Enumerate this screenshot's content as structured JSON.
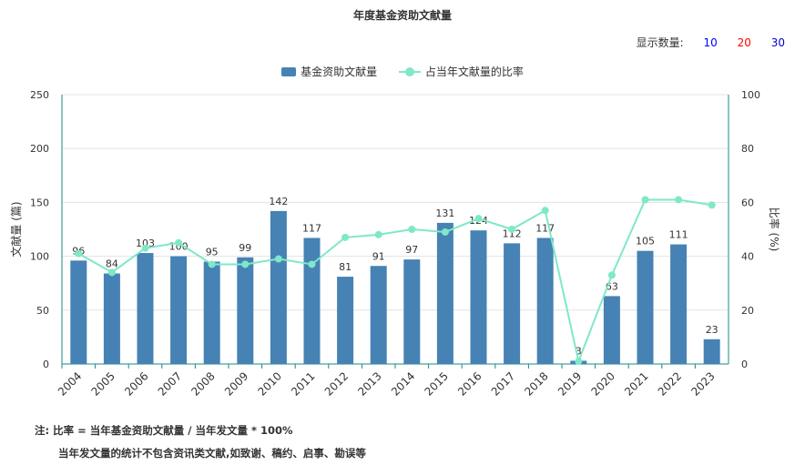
{
  "title": "年度基金资助文献量",
  "display_count": {
    "label": "显示数量:",
    "options": [
      "10",
      "20",
      "30"
    ],
    "option_colors": [
      "#0000ff",
      "#ff0000",
      "#0000cc"
    ]
  },
  "legend": {
    "bar_label": "基金资助文献量",
    "line_label": "占当年文献量的比率"
  },
  "notes": {
    "line1": "注:  比率 = 当年基金资助文献量 / 当年发文量 * 100%",
    "line2": "当年发文量的统计不包含资讯类文献,如致谢、稿约、启事、勘误等"
  },
  "chart_data": {
    "type": "bar",
    "categories": [
      "2004",
      "2005",
      "2006",
      "2007",
      "2008",
      "2009",
      "2010",
      "2011",
      "2012",
      "2013",
      "2014",
      "2015",
      "2016",
      "2017",
      "2018",
      "2019",
      "2020",
      "2021",
      "2022",
      "2023"
    ],
    "series": [
      {
        "name": "基金资助文献量",
        "type": "bar",
        "axis": "left",
        "color": "#4682B4",
        "values": [
          96,
          84,
          103,
          100,
          95,
          99,
          142,
          117,
          81,
          91,
          97,
          131,
          124,
          112,
          117,
          3,
          63,
          105,
          111,
          23
        ]
      },
      {
        "name": "占当年文献量的比率",
        "type": "line",
        "axis": "right",
        "color": "#7EE8C8",
        "values": [
          41,
          34,
          43,
          45,
          37,
          37,
          39,
          37,
          47,
          48,
          50,
          49,
          54,
          50,
          57,
          1,
          33,
          61,
          61,
          59
        ]
      }
    ],
    "ylabel_left": "文献量 (篇)",
    "ylabel_right": "比率 (%)",
    "ylim_left": [
      0,
      250
    ],
    "ylim_right": [
      0,
      100
    ],
    "yticks_left": [
      "0",
      "50",
      "100",
      "150",
      "200",
      "250"
    ],
    "yticks_right": [
      "0",
      "20",
      "40",
      "60",
      "80",
      "100"
    ],
    "grid": true
  }
}
